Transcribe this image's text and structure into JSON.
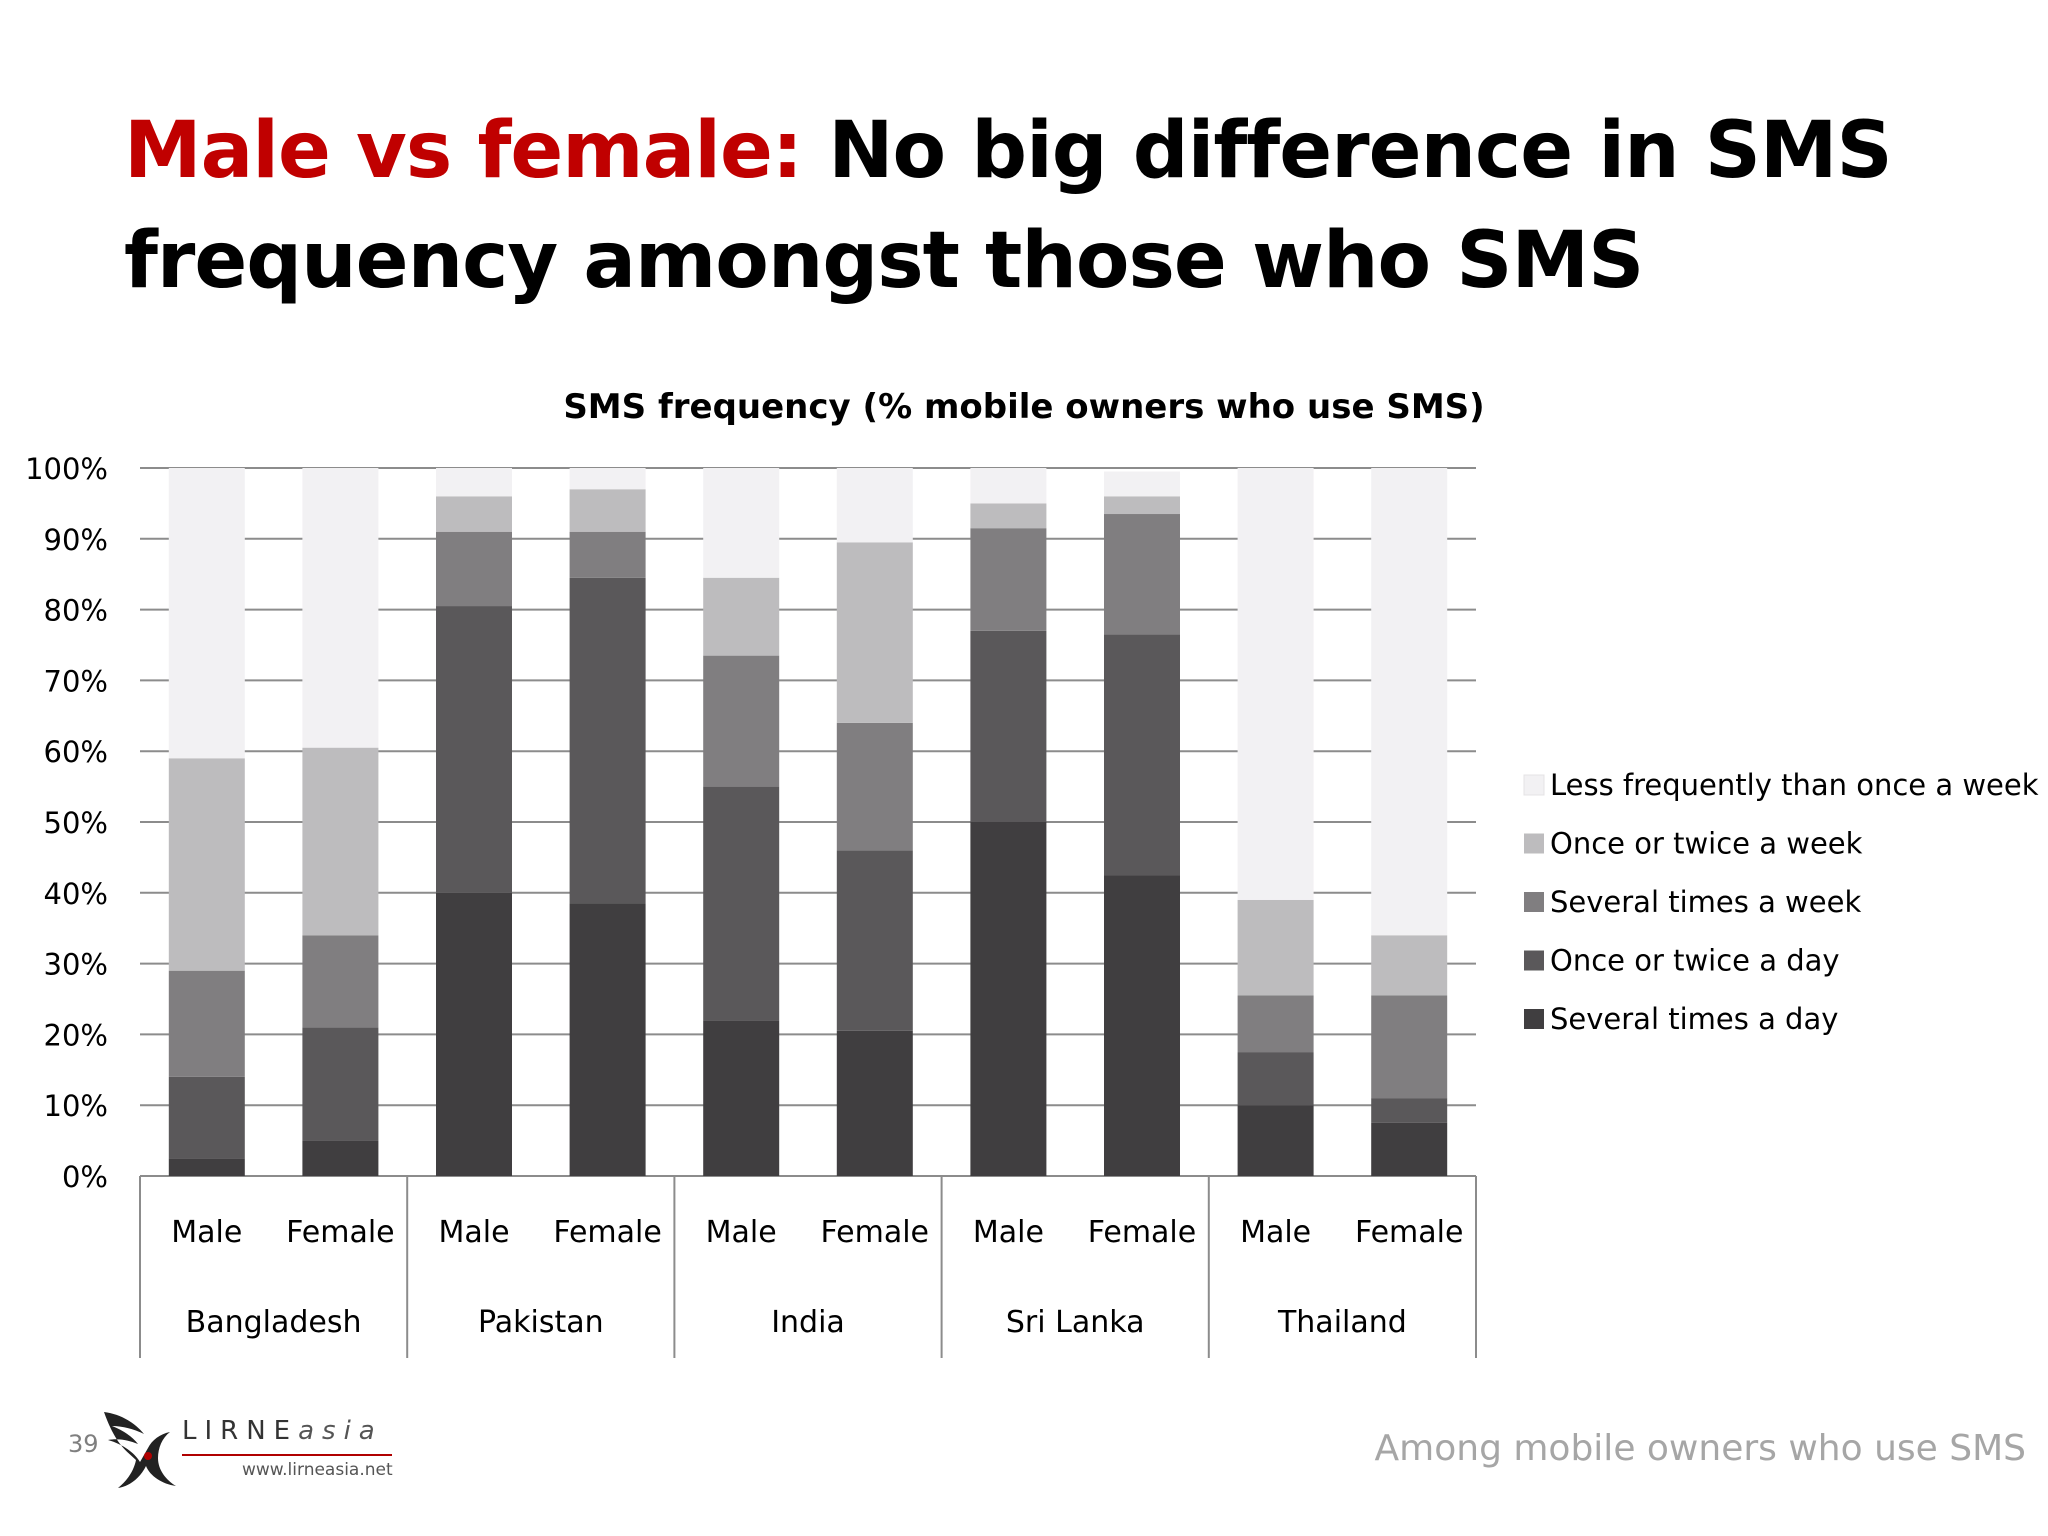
{
  "slide": {
    "title_accent": "Male vs female:",
    "title_rest": " No big difference in SMS frequency amongst those who SMS",
    "page_number": "39",
    "footnote": "Among  mobile owners who use SMS",
    "logo": {
      "brand": "LIRNE",
      "brand_suffix": "asia",
      "url": "www.lirneasia.net"
    }
  },
  "chart_data": {
    "type": "bar",
    "stacked": true,
    "title": "SMS frequency (% mobile owners who use SMS)",
    "y_ticks": [
      "0%",
      "10%",
      "20%",
      "30%",
      "40%",
      "50%",
      "60%",
      "70%",
      "80%",
      "90%",
      "100%"
    ],
    "ylim": [
      0,
      100
    ],
    "grid": true,
    "legend_position": "right",
    "categories": [
      "Male",
      "Female",
      "Male",
      "Female",
      "Male",
      "Female",
      "Male",
      "Female",
      "Male",
      "Female"
    ],
    "groups": [
      "Bangladesh",
      "Pakistan",
      "India",
      "Sri Lanka",
      "Thailand"
    ],
    "series": [
      {
        "name": "Several times a day",
        "color": "#403e40",
        "values": [
          2.5,
          5,
          40,
          38.5,
          22,
          20.5,
          50,
          42.5,
          10,
          7.5
        ]
      },
      {
        "name": "Once or twice a day",
        "color": "#5a585a",
        "values": [
          11.5,
          16,
          40.5,
          46,
          33,
          25.5,
          27,
          34,
          7.5,
          3.5
        ]
      },
      {
        "name": "Several times a week",
        "color": "#807e80",
        "values": [
          15,
          13,
          10.5,
          6.5,
          18.5,
          18,
          14.5,
          17,
          8,
          14.5
        ]
      },
      {
        "name": "Once or twice a week",
        "color": "#bdbcbe",
        "values": [
          30,
          26.5,
          5,
          6,
          11,
          25.5,
          3.5,
          2.5,
          13.5,
          8.5
        ]
      },
      {
        "name": "Less frequently than once a week",
        "color": "#f2f1f3",
        "values": [
          41,
          39.5,
          4,
          3,
          15.5,
          10.5,
          5,
          3.5,
          61,
          66
        ]
      }
    ]
  }
}
